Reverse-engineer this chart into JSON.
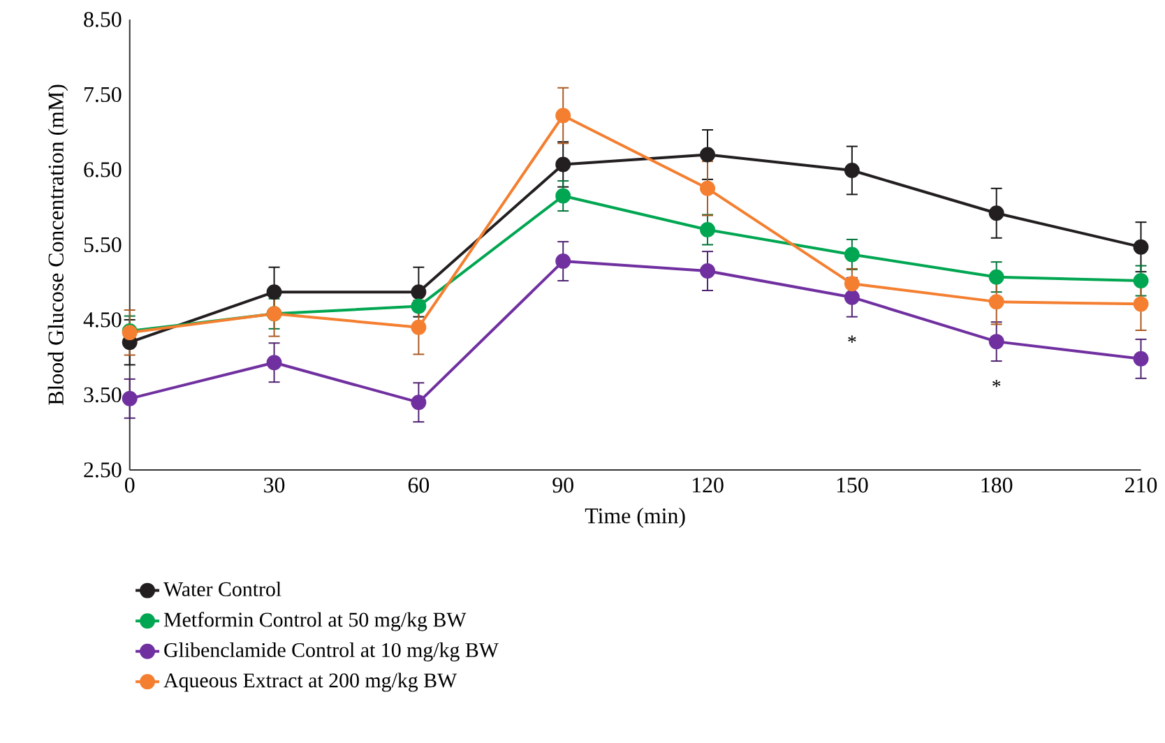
{
  "chart_data": {
    "type": "line",
    "xlabel": "Time (min)",
    "ylabel": "Blood Glucose Concentration (mM)",
    "x": [
      0,
      30,
      60,
      90,
      120,
      150,
      180,
      210
    ],
    "series": [
      {
        "name": "Water Control",
        "color": "#231f20",
        "values": [
          4.2,
          4.87,
          4.87,
          6.57,
          6.7,
          6.49,
          5.92,
          5.47
        ],
        "errors": [
          0.3,
          0.33,
          0.33,
          0.3,
          0.33,
          0.32,
          0.33,
          0.33
        ]
      },
      {
        "name": "Metformin Control at 50 mg/kg BW",
        "color": "#00a651",
        "values": [
          4.35,
          4.58,
          4.68,
          6.15,
          5.7,
          5.37,
          5.07,
          5.02
        ],
        "errors": [
          0.2,
          0.2,
          null,
          0.2,
          0.2,
          0.2,
          0.2,
          0.2
        ]
      },
      {
        "name": "Glibenclamide Control at 10 mg/kg BW",
        "color": "#7030a0",
        "values": [
          3.45,
          3.93,
          3.4,
          5.28,
          5.15,
          4.8,
          4.21,
          3.98
        ],
        "errors": [
          0.26,
          0.26,
          0.26,
          0.26,
          0.26,
          0.26,
          0.26,
          0.26
        ]
      },
      {
        "name": "Aqueous Extract at 200 mg/kg BW",
        "color": "#f47f30",
        "values": [
          4.33,
          4.58,
          4.4,
          7.22,
          6.25,
          4.98,
          4.74,
          4.71
        ],
        "errors": [
          0.3,
          0.3,
          0.36,
          0.37,
          0.36,
          0.2,
          0.3,
          0.35
        ]
      }
    ],
    "xlim": [
      0,
      210
    ],
    "xticks": [
      0,
      30,
      60,
      90,
      120,
      150,
      180,
      210
    ],
    "ylim": [
      2.5,
      8.5
    ],
    "yticks": [
      {
        "value": 2.5,
        "label": "2.50"
      },
      {
        "value": 3.5,
        "label": "3.50"
      },
      {
        "value": 4.5,
        "label": "4.50"
      },
      {
        "value": 5.5,
        "label": "5.50"
      },
      {
        "value": 6.5,
        "label": "6.50"
      },
      {
        "value": 7.5,
        "label": "7.50"
      },
      {
        "value": 8.5,
        "label": "8.50"
      }
    ],
    "annotations": [
      {
        "text": "*",
        "x": 150,
        "y": 4.8
      },
      {
        "text": "*",
        "x": 180,
        "y": 4.21
      }
    ],
    "grid": false,
    "legend": "bottom",
    "marker": "circle",
    "line_style": "solid"
  }
}
